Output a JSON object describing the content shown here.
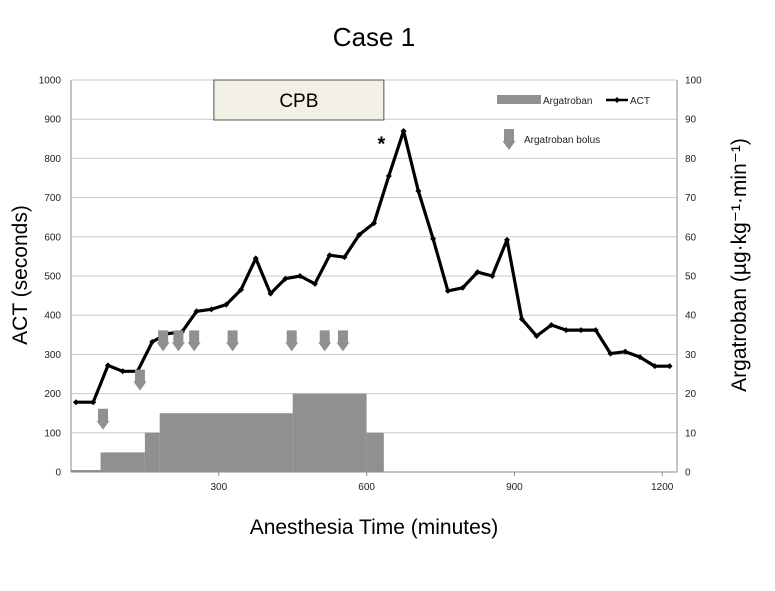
{
  "chart_data": {
    "type": "line",
    "title": "Case 1",
    "xlabel": "Anesthesia Time (minutes)",
    "ylabel": "ACT (seconds)",
    "y2label": "Argatroban (µg·kg⁻¹·min⁻¹)",
    "xlim": [
      0,
      1230
    ],
    "ylim": [
      0,
      1000
    ],
    "y2lim": [
      0,
      100
    ],
    "x_ticks": [
      300,
      600,
      900,
      1200
    ],
    "y_ticks": [
      0,
      100,
      200,
      300,
      400,
      500,
      600,
      700,
      800,
      900,
      1000
    ],
    "y2_ticks": [
      0,
      10,
      20,
      30,
      40,
      50,
      60,
      70,
      80,
      90,
      100
    ],
    "grid": true,
    "legend_position": "top-right",
    "series": [
      {
        "name": "ACT",
        "color": "#000000",
        "x": [
          10,
          45,
          75,
          105,
          135,
          165,
          195,
          225,
          255,
          285,
          315,
          345,
          375,
          405,
          435,
          465,
          495,
          525,
          555,
          585,
          615,
          645,
          675,
          705,
          735,
          765,
          795,
          825,
          855,
          885,
          915,
          945,
          975,
          1005,
          1035,
          1065,
          1095,
          1125,
          1155,
          1185,
          1215
        ],
        "y": [
          178,
          178,
          272,
          257,
          257,
          332,
          353,
          357,
          410,
          415,
          427,
          465,
          545,
          455,
          493,
          500,
          480,
          553,
          548,
          605,
          635,
          755,
          870,
          717,
          595,
          462,
          470,
          510,
          500,
          592,
          390,
          347,
          375,
          362,
          362,
          362,
          302,
          307,
          293,
          270,
          270
        ]
      },
      {
        "name": "Argatroban",
        "color": "#909090",
        "step_x": [
          0,
          60,
          150,
          180,
          450,
          600,
          635
        ],
        "step_y": [
          0.5,
          5,
          10,
          15,
          20,
          10
        ]
      }
    ],
    "bolus_label": "Argatroban bolus",
    "bolus_color": "#909090",
    "bolus_marks": [
      {
        "x": 65,
        "y": 100
      },
      {
        "x": 140,
        "y": 200
      },
      {
        "x": 187,
        "y": 300
      },
      {
        "x": 218,
        "y": 300
      },
      {
        "x": 250,
        "y": 300
      },
      {
        "x": 328,
        "y": 300
      },
      {
        "x": 448,
        "y": 300
      },
      {
        "x": 515,
        "y": 300
      },
      {
        "x": 552,
        "y": 300
      }
    ],
    "cpb_label": "CPB",
    "cpb_range": [
      290,
      635
    ],
    "annotation": {
      "text": "*",
      "x": 630,
      "y": 840
    }
  }
}
